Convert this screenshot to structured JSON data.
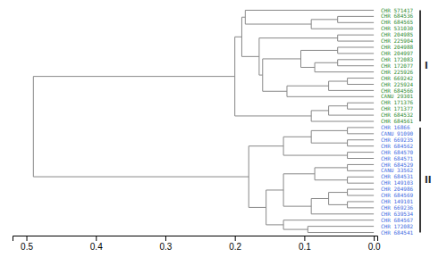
{
  "chart_data": {
    "type": "dendrogram",
    "color": "#888888",
    "xlim": [
      0.52,
      -0.005
    ],
    "xticks": [
      0.5,
      0.4,
      0.3,
      0.2,
      0.1,
      {
        "value": 0,
        "label": "0.0"
      }
    ],
    "clusters": [
      {
        "name": "I",
        "color": "#2e8b2e",
        "labels": [
          "CHR 571417",
          "CHR 684536",
          "CHR 684565",
          "CHR 531030",
          "CHR 204985",
          "CHR 225904",
          "CHR 204988",
          "CHR 204997",
          "CHR 172083",
          "CHR 172077",
          "CHR 225926",
          "CHR 669242",
          "CHR 225924",
          "CHR 684566",
          "CANU 29301",
          "CHR 171376",
          "CHR 171377",
          "CHR 684532",
          "CHR 684561"
        ]
      },
      {
        "name": "II",
        "color": "#4169E1",
        "labels": [
          "CHR 16866",
          "CANU 91090",
          "CHR 669235",
          "CHR 684562",
          "CHR 684570",
          "CHR 684571",
          "CHR 684529",
          "CANU 33562",
          "CHR 684531",
          "CHR 149103",
          "CHR 204986",
          "CHR 684569",
          "CHR 149101",
          "CHR 669236",
          "CHR 639534",
          "CHR 684567",
          "CHR 172082",
          "CHR 684541"
        ]
      }
    ],
    "tree": {
      "height": 0.49,
      "children": [
        {
          "height": 0.2,
          "children": [
            {
              "height": 0.19,
              "children": [
                {
                  "height": 0.185,
                  "children": [
                    {
                      "name": "CHR 571417"
                    },
                    {
                      "height": 0.09,
                      "children": [
                        {
                          "height": 0.052,
                          "children": [
                            {
                              "name": "CHR 684536"
                            },
                            {
                              "name": "CHR 684565"
                            }
                          ]
                        },
                        {
                          "name": "CHR 531030"
                        }
                      ]
                    }
                  ]
                },
                {
                  "height": 0.165,
                  "children": [
                    {
                      "height": 0.052,
                      "children": [
                        {
                          "name": "CHR 204985"
                        },
                        {
                          "name": "CHR 225904"
                        }
                      ]
                    },
                    {
                      "height": 0.16,
                      "children": [
                        {
                          "height": 0.105,
                          "children": [
                            {
                              "height": 0.052,
                              "children": [
                                {
                                  "name": "CHR 204988"
                                },
                                {
                                  "name": "CHR 204997"
                                }
                              ]
                            },
                            {
                              "height": 0.085,
                              "children": [
                                {
                                  "name": "CHR 225926"
                                },
                                {
                                  "height": 0.052,
                                  "children": [
                                    {
                                      "name": "CHR 172083"
                                    },
                                    {
                                      "name": "CHR 172077"
                                    }
                                  ]
                                }
                              ]
                            }
                          ]
                        },
                        {
                          "height": 0.125,
                          "children": [
                            {
                              "height": 0.065,
                              "children": [
                                {
                                  "height": 0.038,
                                  "children": [
                                    {
                                      "name": "CHR 669242"
                                    },
                                    {
                                      "name": "CHR 225924"
                                    }
                                  ]
                                },
                                {
                                  "name": "CHR 684566"
                                }
                              ]
                            },
                            {
                              "name": "CANU 29301"
                            }
                          ]
                        }
                      ]
                    }
                  ]
                }
              ]
            },
            {
              "height": 0.09,
              "children": [
                {
                  "height": 0.065,
                  "children": [
                    {
                      "height": 0.038,
                      "children": [
                        {
                          "name": "CHR 171376"
                        },
                        {
                          "name": "CHR 171377"
                        }
                      ]
                    },
                    {
                      "name": "CHR 684532"
                    }
                  ]
                },
                {
                  "name": "CHR 684561"
                }
              ]
            }
          ]
        },
        {
          "height": 0.18,
          "children": [
            {
              "height": 0.13,
              "children": [
                {
                  "height": 0.09,
                  "children": [
                    {
                      "height": 0.038,
                      "children": [
                        {
                          "name": "CHR 16866"
                        },
                        {
                          "name": "CANU 91090"
                        }
                      ]
                    },
                    {
                      "height": 0.038,
                      "children": [
                        {
                          "name": "CHR 669235"
                        },
                        {
                          "name": "CHR 684562"
                        }
                      ]
                    }
                  ]
                },
                {
                  "height": 0.038,
                  "children": [
                    {
                      "name": "CHR 684570"
                    },
                    {
                      "name": "CHR 684571"
                    }
                  ]
                }
              ]
            },
            {
              "height": 0.155,
              "children": [
                {
                  "height": 0.13,
                  "children": [
                    {
                      "height": 0.085,
                      "children": [
                        {
                          "height": 0.038,
                          "children": [
                            {
                              "name": "CHR 684529"
                            },
                            {
                              "name": "CANU 33562"
                            }
                          ]
                        },
                        {
                          "height": 0.038,
                          "children": [
                            {
                              "name": "CHR 684531"
                            },
                            {
                              "name": "CHR 149103"
                            }
                          ]
                        }
                      ]
                    },
                    {
                      "height": 0.09,
                      "children": [
                        {
                          "name": "CHR 639534"
                        },
                        {
                          "height": 0.065,
                          "children": [
                            {
                              "height": 0.038,
                              "children": [
                                {
                                  "name": "CHR 204986"
                                },
                                {
                                  "name": "CHR 684569"
                                }
                              ]
                            },
                            {
                              "height": 0.038,
                              "children": [
                                {
                                  "name": "CHR 149101"
                                },
                                {
                                  "name": "CHR 669236"
                                }
                              ]
                            }
                          ]
                        }
                      ]
                    }
                  ]
                },
                {
                  "height": 0.13,
                  "children": [
                    {
                      "name": "CHR 684567"
                    },
                    {
                      "height": 0.095,
                      "children": [
                        {
                          "name": "CHR 172082"
                        },
                        {
                          "name": "CHR 684541"
                        }
                      ]
                    }
                  ]
                }
              ]
            }
          ]
        }
      ]
    }
  }
}
